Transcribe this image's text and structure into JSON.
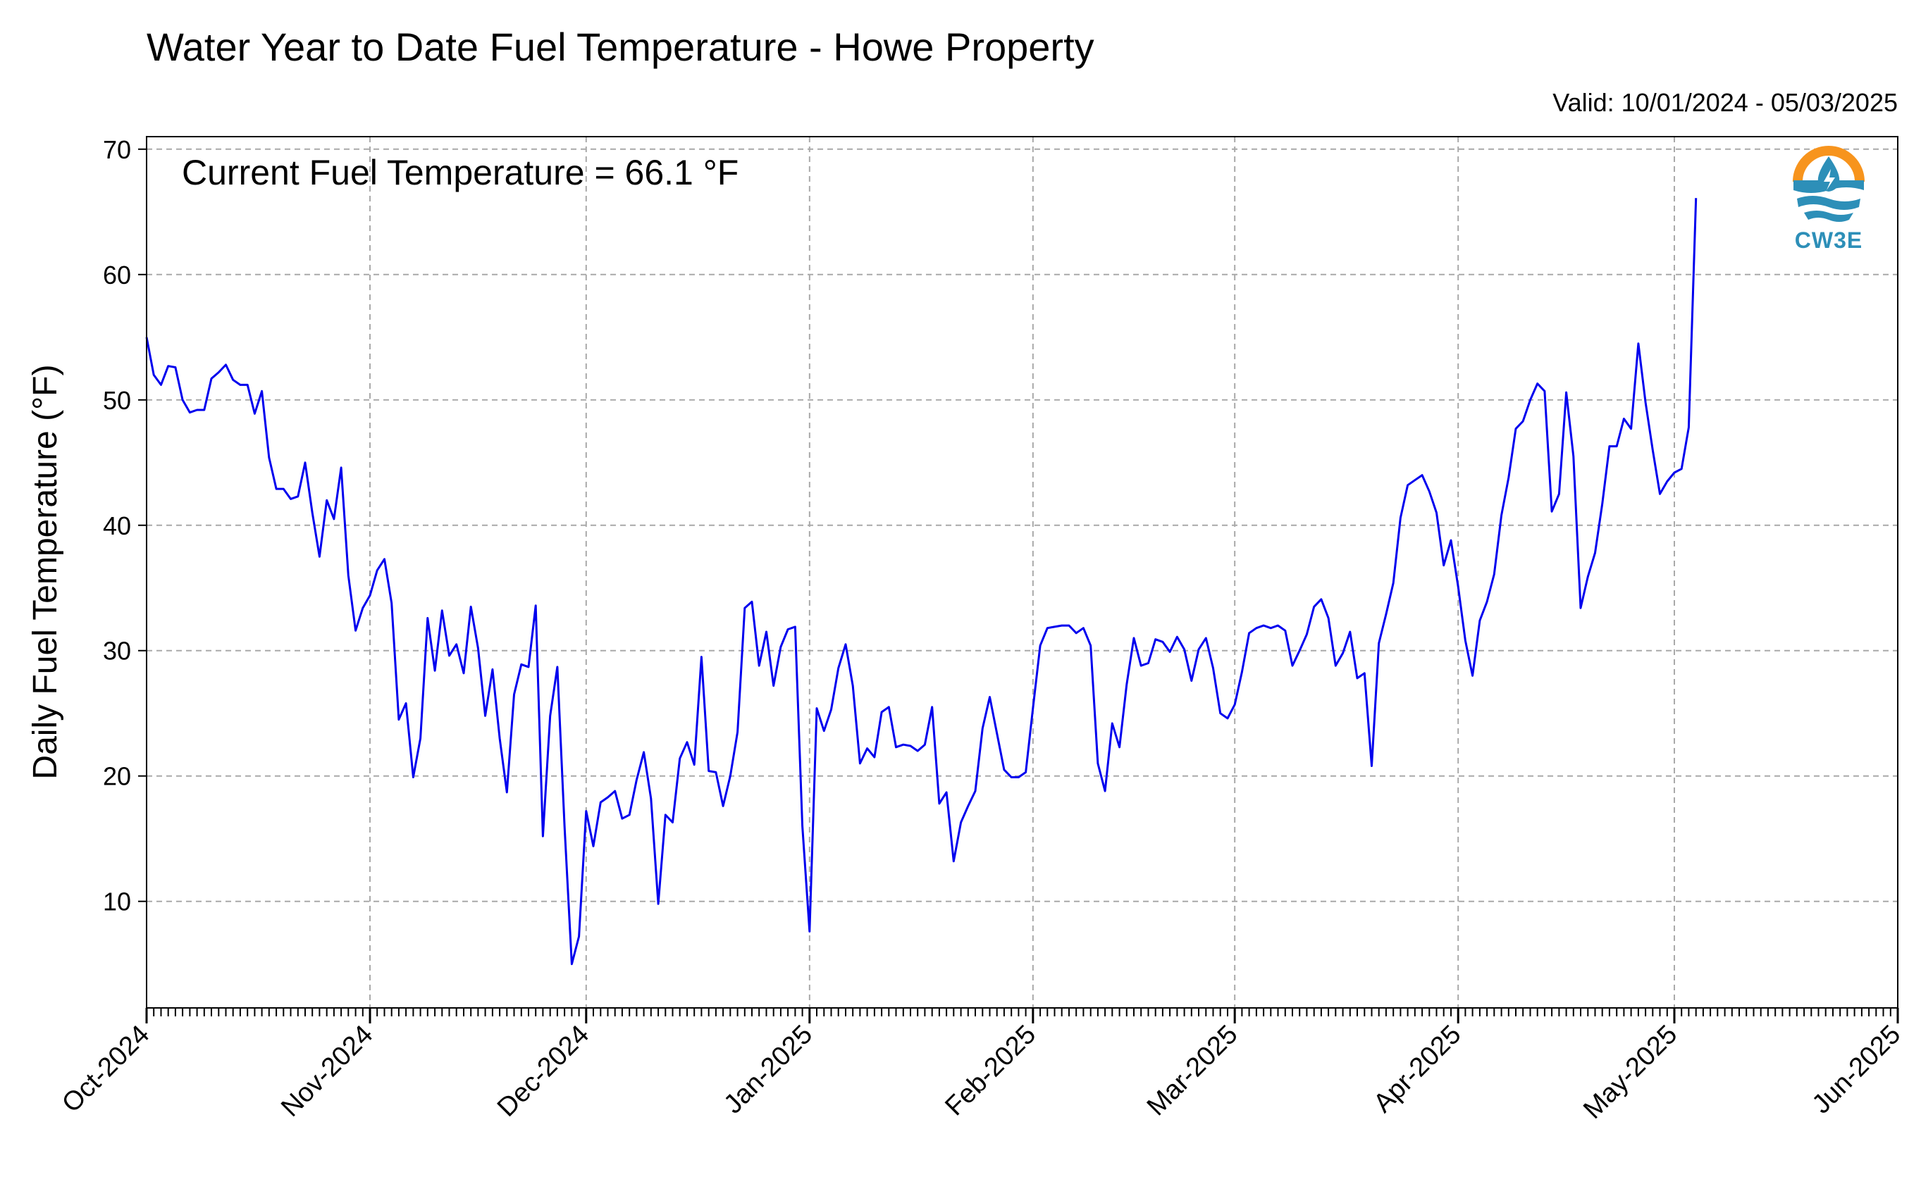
{
  "chart_data": {
    "type": "line",
    "title": "Water Year to Date Fuel Temperature - Howe Property",
    "valid_label": "Valid: 10/01/2024 - 05/03/2025",
    "annotation": "Current Fuel Temperature = 66.1 °F",
    "ylabel": "Daily Fuel Temperature (°F)",
    "xlim": [
      "2024-10-01",
      "2025-06-01"
    ],
    "ylim": [
      1.5,
      71
    ],
    "yticks": [
      10,
      20,
      30,
      40,
      50,
      60,
      70
    ],
    "xticks": [
      {
        "date": "2024-10-01",
        "label": "Oct-2024"
      },
      {
        "date": "2024-11-01",
        "label": "Nov-2024"
      },
      {
        "date": "2024-12-01",
        "label": "Dec-2024"
      },
      {
        "date": "2025-01-01",
        "label": "Jan-2025"
      },
      {
        "date": "2025-02-01",
        "label": "Feb-2025"
      },
      {
        "date": "2025-03-01",
        "label": "Mar-2025"
      },
      {
        "date": "2025-04-01",
        "label": "Apr-2025"
      },
      {
        "date": "2025-05-01",
        "label": "May-2025"
      },
      {
        "date": "2025-06-01",
        "label": "Jun-2025"
      }
    ],
    "grid": true,
    "line_color": "#0000ee",
    "series": [
      {
        "start_date": "2024-10-01",
        "values": [
          55.0,
          52.0,
          51.2,
          52.7,
          52.6,
          50.0,
          49.0,
          49.2,
          49.2,
          51.7,
          52.2,
          52.8,
          51.6,
          51.2,
          51.2,
          48.9,
          50.7,
          45.4,
          42.9,
          42.9,
          42.1,
          42.3,
          45.0,
          41.0,
          37.5,
          42.0,
          40.5,
          44.6,
          36.0,
          31.6,
          33.4,
          34.4,
          36.4,
          37.3,
          33.8,
          24.5,
          25.8,
          19.9,
          23.0,
          32.6,
          28.4,
          33.2,
          29.6,
          30.5,
          28.2,
          33.5,
          30.2,
          24.8,
          28.5,
          23.0,
          18.7,
          26.5,
          28.9,
          28.7,
          33.6,
          15.2,
          24.8,
          28.7,
          16.0,
          5.0,
          7.2,
          17.2,
          14.4,
          17.9,
          18.3,
          18.8,
          16.6,
          16.9,
          19.7,
          21.9,
          18.2,
          9.8,
          16.9,
          16.3,
          21.4,
          22.7,
          20.9,
          29.5,
          20.4,
          20.3,
          17.6,
          20.0,
          23.5,
          33.4,
          33.9,
          28.8,
          31.5,
          27.2,
          30.3,
          31.7,
          31.9,
          16.0,
          7.6,
          25.4,
          23.6,
          25.3,
          28.6,
          30.5,
          27.2,
          21.0,
          22.2,
          21.5,
          25.1,
          25.5,
          22.3,
          22.5,
          22.4,
          22.0,
          22.5,
          25.5,
          17.8,
          18.7,
          13.2,
          16.3,
          17.6,
          18.8,
          23.8,
          26.3,
          23.4,
          20.5,
          19.9,
          19.9,
          20.3,
          25.4,
          30.4,
          31.8,
          31.9,
          32.0,
          32.0,
          31.4,
          31.8,
          30.4,
          21.0,
          18.8,
          24.2,
          22.3,
          27.3,
          31.0,
          28.8,
          29.0,
          30.9,
          30.7,
          29.9,
          31.1,
          30.1,
          27.6,
          30.1,
          31.0,
          28.6,
          25.0,
          24.6,
          25.7,
          28.3,
          31.4,
          31.8,
          32.0,
          31.8,
          32.0,
          31.6,
          28.8,
          30.0,
          31.3,
          33.5,
          34.1,
          32.6,
          28.8,
          29.8,
          31.5,
          27.8,
          28.2,
          20.8,
          30.6,
          32.9,
          35.4,
          40.6,
          43.2,
          43.6,
          44.0,
          42.7,
          41.0,
          36.8,
          38.8,
          35.1,
          30.8,
          28.0,
          32.4,
          33.9,
          36.1,
          40.8,
          43.8,
          47.7,
          48.3,
          50.0,
          51.3,
          50.7,
          41.1,
          42.5,
          50.6,
          45.5,
          33.4,
          35.9,
          37.8,
          41.7,
          46.3,
          46.3,
          48.5,
          47.7,
          54.5,
          49.8,
          46.0,
          42.5,
          43.5,
          44.2,
          44.5,
          47.8,
          66.1
        ]
      }
    ]
  },
  "logo": {
    "text": "CW3E",
    "ring_color": "#f7941d",
    "drop_color": "#2d8fb8"
  }
}
